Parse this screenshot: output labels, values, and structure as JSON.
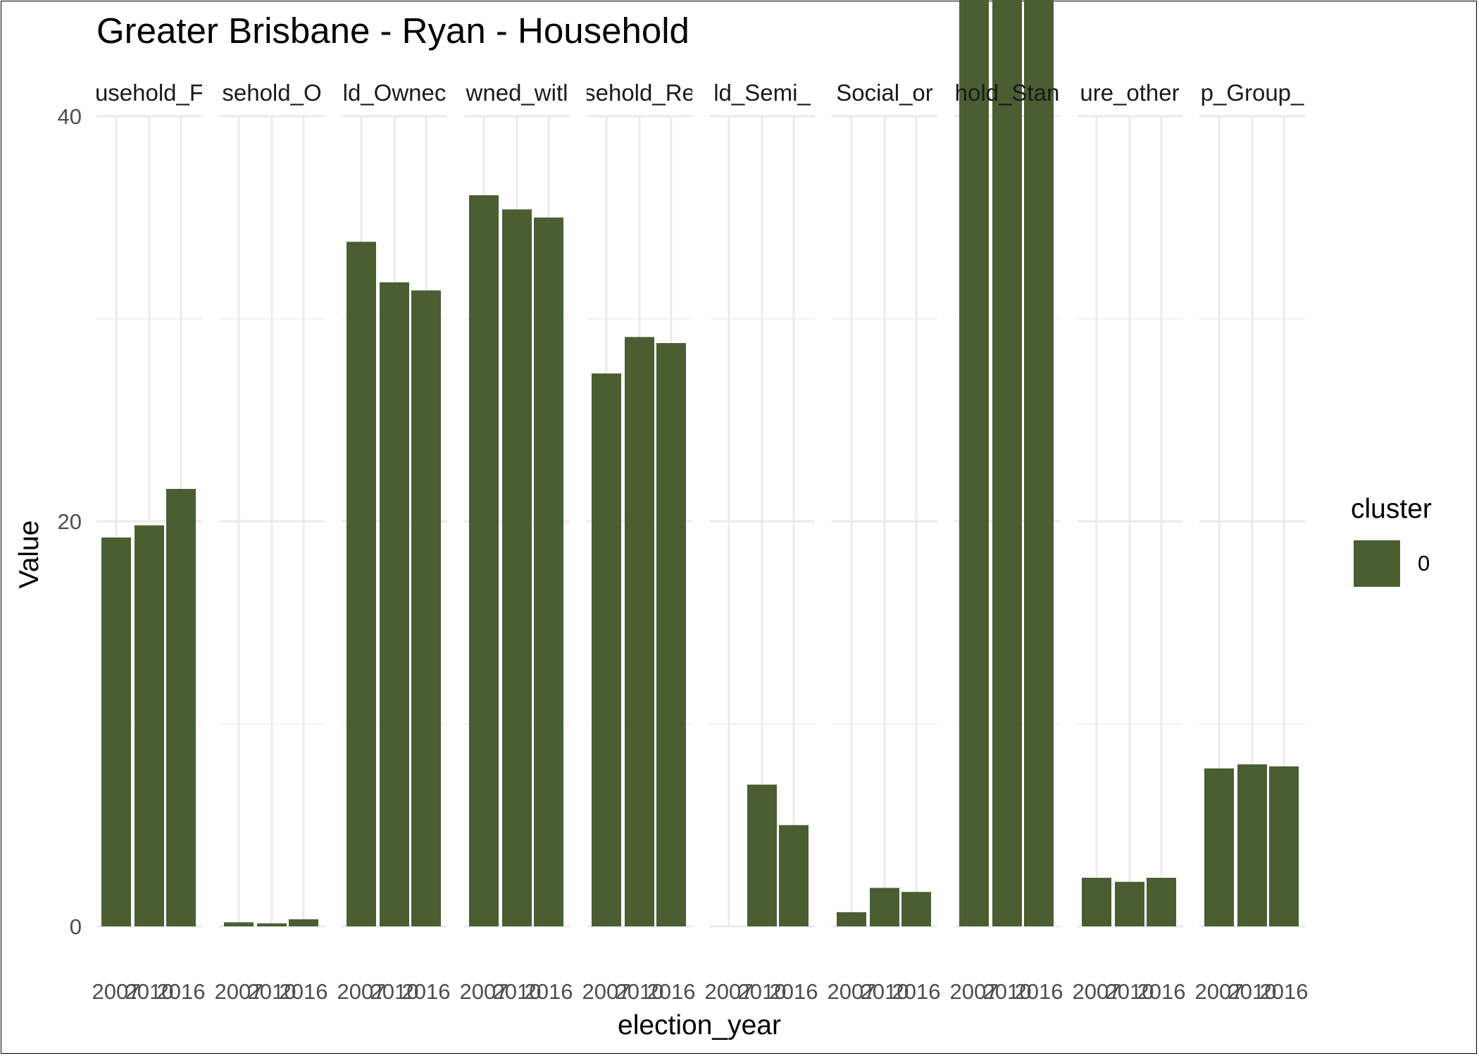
{
  "chart_data": {
    "type": "bar",
    "title": "Greater Brisbane - Ryan - Household",
    "xlabel": "election_year",
    "ylabel": "Value",
    "ylim": [
      0,
      80
    ],
    "y_ticks": [
      0,
      20,
      40,
      60
    ],
    "x_categories": [
      "2007",
      "2010",
      "2016"
    ],
    "grid": true,
    "legend": {
      "title": "cluster",
      "position": "right",
      "entries": [
        {
          "label": "0",
          "color": "#4a5e32"
        }
      ]
    },
    "facets": [
      {
        "label": "usehold_F",
        "values": [
          19.2,
          19.8,
          21.6
        ]
      },
      {
        "label": "sehold_O",
        "values": [
          0.2,
          0.15,
          0.35
        ]
      },
      {
        "label": "ld_Ownec",
        "values": [
          33.8,
          31.8,
          31.4
        ]
      },
      {
        "label": "wned_witl",
        "values": [
          36.1,
          35.4,
          35.0
        ]
      },
      {
        "label": "sehold_Re",
        "values": [
          27.3,
          29.1,
          28.8
        ]
      },
      {
        "label": "ld_Semi_",
        "values": [
          0,
          7.0,
          5.0
        ]
      },
      {
        "label": "Social_or",
        "values": [
          0.7,
          1.9,
          1.7
        ]
      },
      {
        "label": "hold_Stan",
        "values": [
          76.0,
          73.0,
          72.9
        ]
      },
      {
        "label": "ure_other",
        "values": [
          2.4,
          2.2,
          2.4
        ]
      },
      {
        "label": "p_Group_",
        "values": [
          7.8,
          8.0,
          7.9
        ]
      }
    ]
  }
}
